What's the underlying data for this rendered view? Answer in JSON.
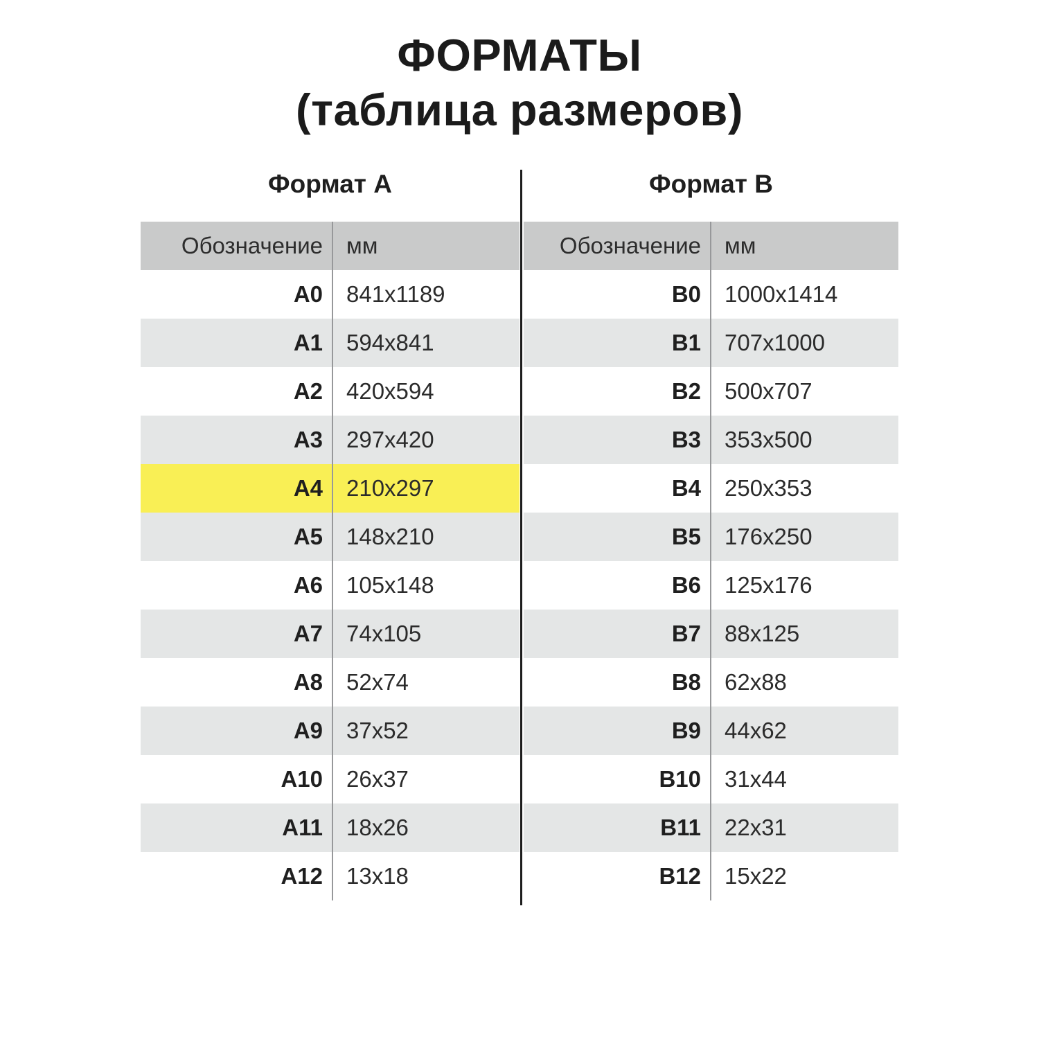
{
  "title": {
    "line1": "ФОРМАТЫ",
    "line2": "(таблица размеров)"
  },
  "colors": {
    "highlight": "#f9ef55",
    "row_alt": "#e4e6e6",
    "header_bg": "#c9caca",
    "divider": "#97989a",
    "center_line": "#1d1d1d"
  },
  "tables": [
    {
      "heading": "Формат А",
      "designation_header": "Обозначение",
      "unit_header": "мм",
      "rows": [
        {
          "label": "A0",
          "size": "841x1189"
        },
        {
          "label": "A1",
          "size": "594x841"
        },
        {
          "label": "A2",
          "size": "420x594"
        },
        {
          "label": "A3",
          "size": "297x420"
        },
        {
          "label": "A4",
          "size": "210x297",
          "highlight": true
        },
        {
          "label": "A5",
          "size": "148x210"
        },
        {
          "label": "A6",
          "size": "105x148"
        },
        {
          "label": "A7",
          "size": "74x105"
        },
        {
          "label": "A8",
          "size": "52x74"
        },
        {
          "label": "A9",
          "size": "37x52"
        },
        {
          "label": "A10",
          "size": "26x37"
        },
        {
          "label": "A11",
          "size": "18x26"
        },
        {
          "label": "A12",
          "size": "13x18"
        }
      ]
    },
    {
      "heading": "Формат B",
      "designation_header": "Обозначение",
      "unit_header": "мм",
      "rows": [
        {
          "label": "B0",
          "size": "1000x1414"
        },
        {
          "label": "B1",
          "size": "707x1000"
        },
        {
          "label": "B2",
          "size": "500x707"
        },
        {
          "label": "B3",
          "size": "353x500"
        },
        {
          "label": "B4",
          "size": "250x353"
        },
        {
          "label": "B5",
          "size": "176x250"
        },
        {
          "label": "B6",
          "size": "125x176"
        },
        {
          "label": "B7",
          "size": "88x125"
        },
        {
          "label": "B8",
          "size": "62x88"
        },
        {
          "label": "B9",
          "size": "44x62"
        },
        {
          "label": "B10",
          "size": "31x44"
        },
        {
          "label": "B11",
          "size": "22x31"
        },
        {
          "label": "B12",
          "size": "15x22"
        }
      ]
    }
  ],
  "chart_data": {
    "type": "table",
    "title": "ФОРМАТЫ (таблица размеров)",
    "columns": [
      "Обозначение",
      "мм"
    ],
    "series": [
      {
        "name": "Формат А",
        "rows": [
          [
            "A0",
            "841x1189"
          ],
          [
            "A1",
            "594x841"
          ],
          [
            "A2",
            "420x594"
          ],
          [
            "A3",
            "297x420"
          ],
          [
            "A4",
            "210x297"
          ],
          [
            "A5",
            "148x210"
          ],
          [
            "A6",
            "105x148"
          ],
          [
            "A7",
            "74x105"
          ],
          [
            "A8",
            "52x74"
          ],
          [
            "A9",
            "37x52"
          ],
          [
            "A10",
            "26x37"
          ],
          [
            "A11",
            "18x26"
          ],
          [
            "A12",
            "13x18"
          ]
        ],
        "highlighted_row": "A4"
      },
      {
        "name": "Формат B",
        "rows": [
          [
            "B0",
            "1000x1414"
          ],
          [
            "B1",
            "707x1000"
          ],
          [
            "B2",
            "500x707"
          ],
          [
            "B3",
            "353x500"
          ],
          [
            "B4",
            "250x353"
          ],
          [
            "B5",
            "176x250"
          ],
          [
            "B6",
            "125x176"
          ],
          [
            "B7",
            "88x125"
          ],
          [
            "B8",
            "62x88"
          ],
          [
            "B9",
            "44x62"
          ],
          [
            "B10",
            "31x44"
          ],
          [
            "B11",
            "22x31"
          ],
          [
            "B12",
            "15x22"
          ]
        ]
      }
    ]
  }
}
